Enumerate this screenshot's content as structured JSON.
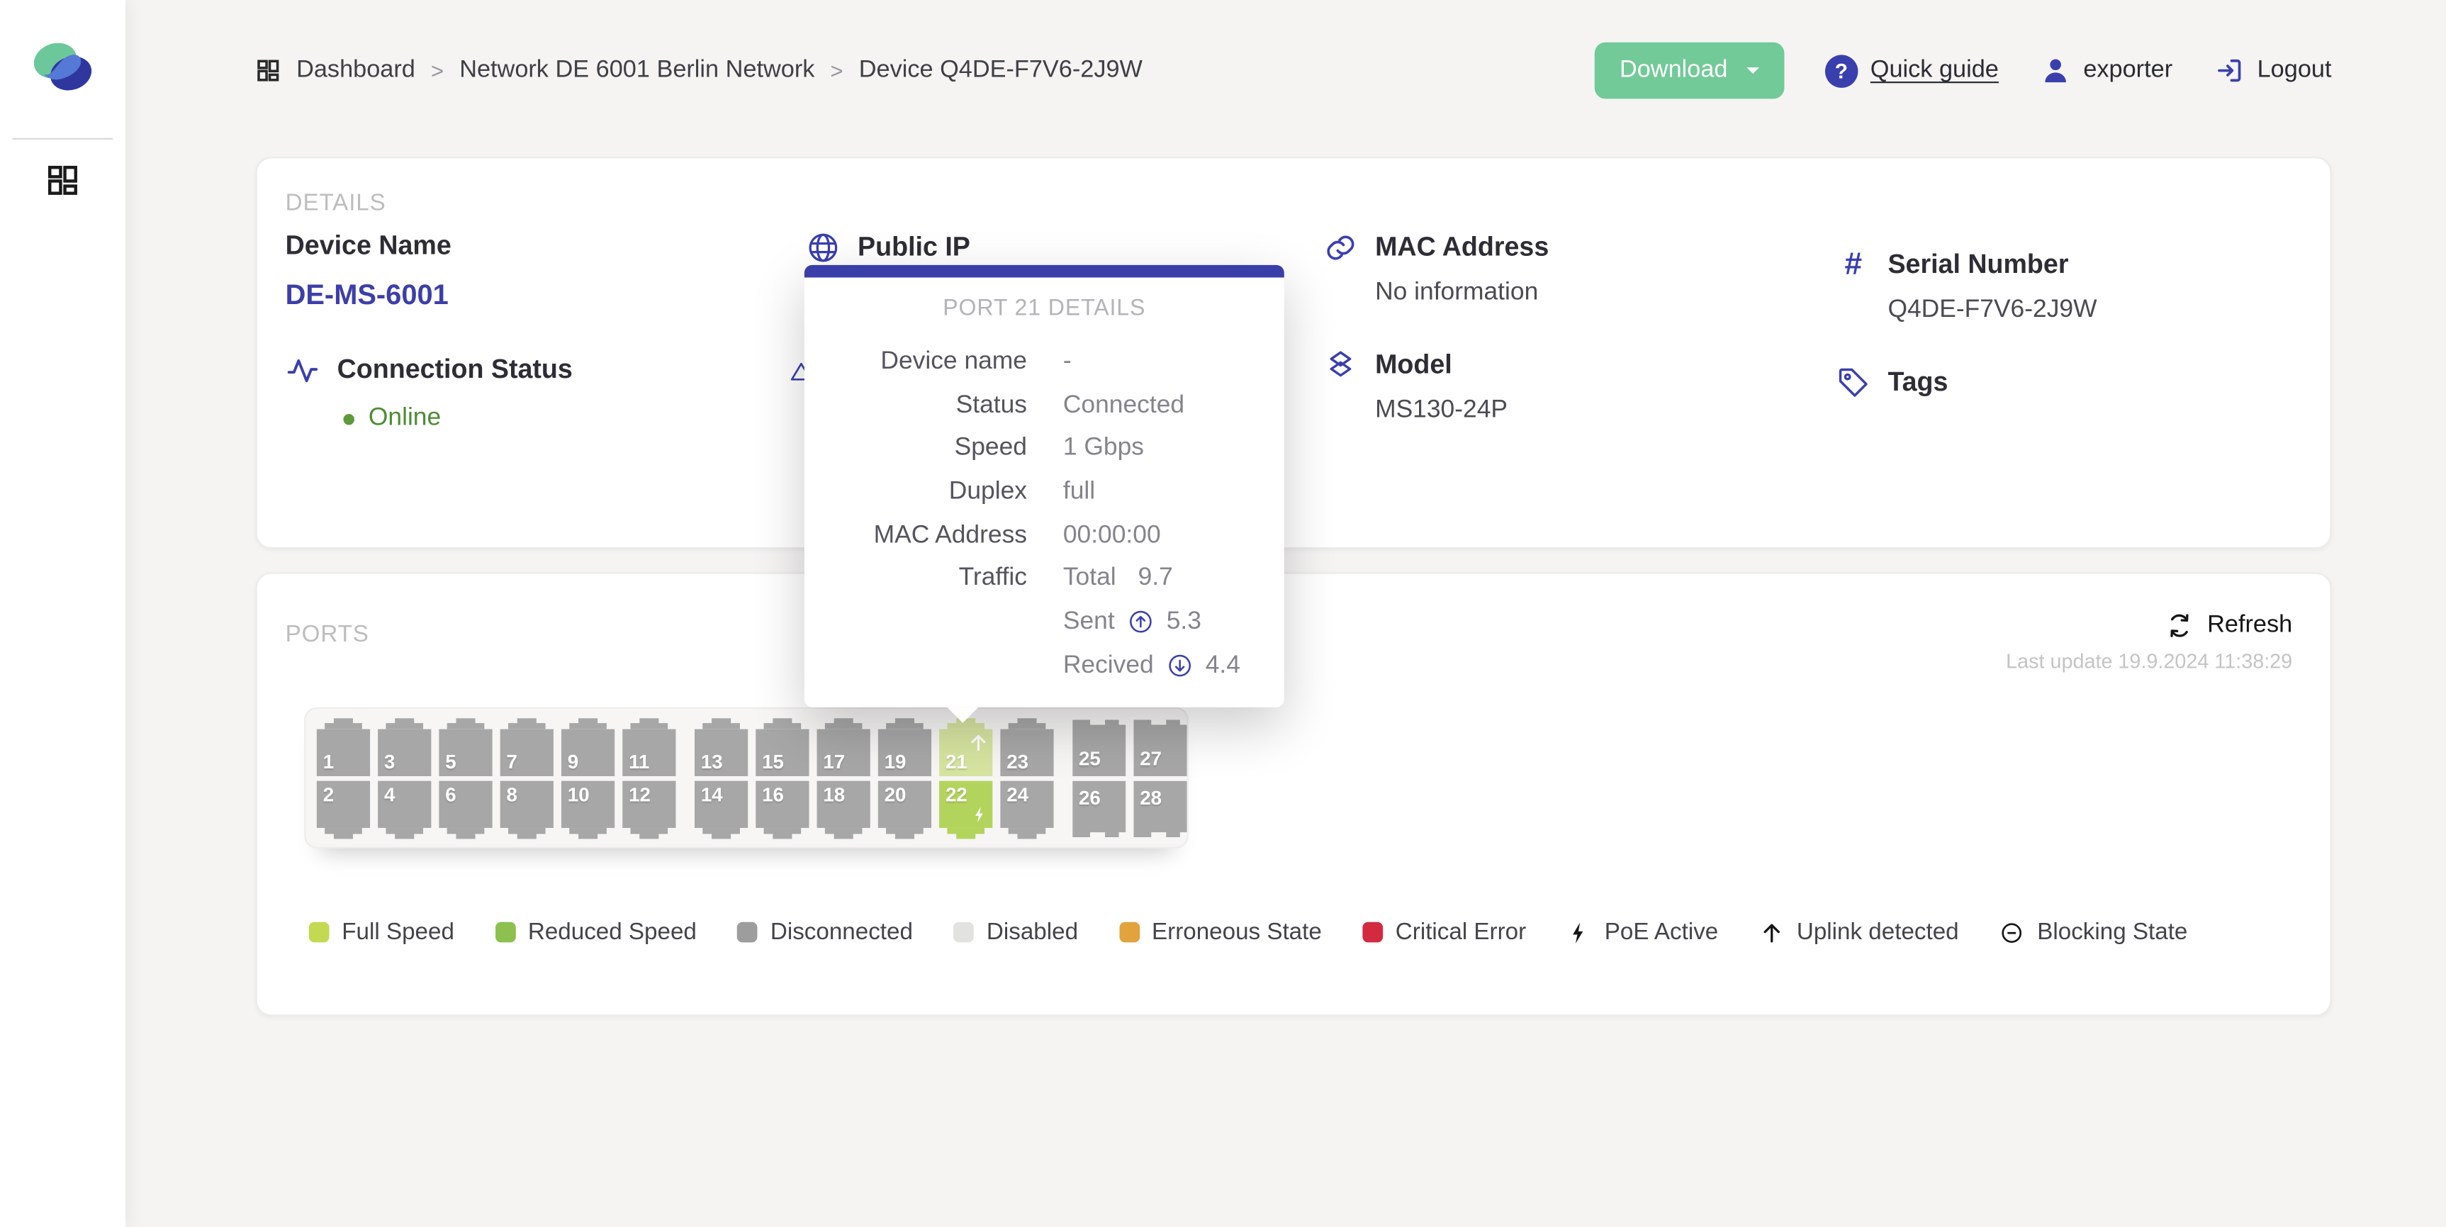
{
  "colors": {
    "accent_indigo": "#3a3fae",
    "button_green": "#71ca97",
    "online_green": "#4f8c36",
    "tooltip_bar": "#3a3ea8"
  },
  "breadcrumb": {
    "items": [
      "Dashboard",
      "Network DE 6001 Berlin Network",
      "Device Q4DE-F7V6-2J9W"
    ],
    "separator": ">"
  },
  "topbar": {
    "download_label": "Download",
    "quick_guide_label": "Quick guide",
    "username": "exporter",
    "logout_label": "Logout"
  },
  "details": {
    "section_title": "DETAILS",
    "device_name_label": "Device Name",
    "device_name": "DE-MS-6001",
    "connection_status_label": "Connection Status",
    "connection_status": "Online",
    "public_ip_label": "Public IP",
    "mac_label": "MAC Address",
    "mac": "No information",
    "model_label": "Model",
    "model": "MS130-24P",
    "serial_label": "Serial Number",
    "serial": "Q4DE-F7V6-2J9W",
    "tags_label": "Tags"
  },
  "tooltip": {
    "title": "PORT 21 DETAILS",
    "rows": [
      {
        "label": "Device name",
        "text": "-"
      },
      {
        "label": "Status",
        "text": "Connected"
      },
      {
        "label": "Speed",
        "text": "1 Gbps"
      },
      {
        "label": "Duplex",
        "text": "full"
      },
      {
        "label": "MAC Address",
        "text": "00:00:00"
      },
      {
        "label": "Traffic",
        "text": "Total",
        "num": "9.7"
      },
      {
        "label": "",
        "text": "Sent",
        "icon": "up-circle",
        "num": "5.3"
      },
      {
        "label": "",
        "text": "Recived",
        "icon": "down-circle",
        "num": "4.4"
      }
    ]
  },
  "ports_card": {
    "section_title": "PORTS",
    "refresh_label": "Refresh",
    "last_update": "Last update 19.9.2024 11:38:29",
    "state_colors": {
      "disconnected": "#a7a7a7",
      "full-speed": "#d6e4a0",
      "reduced-speed": "#b3d45c"
    },
    "ports": [
      {
        "n": 1,
        "type": "rj45",
        "state": "disconnected"
      },
      {
        "n": 2,
        "type": "rj45",
        "state": "disconnected"
      },
      {
        "n": 3,
        "type": "rj45",
        "state": "disconnected"
      },
      {
        "n": 4,
        "type": "rj45",
        "state": "disconnected"
      },
      {
        "n": 5,
        "type": "rj45",
        "state": "disconnected"
      },
      {
        "n": 6,
        "type": "rj45",
        "state": "disconnected"
      },
      {
        "n": 7,
        "type": "rj45",
        "state": "disconnected"
      },
      {
        "n": 8,
        "type": "rj45",
        "state": "disconnected"
      },
      {
        "n": 9,
        "type": "rj45",
        "state": "disconnected"
      },
      {
        "n": 10,
        "type": "rj45",
        "state": "disconnected"
      },
      {
        "n": 11,
        "type": "rj45",
        "state": "disconnected"
      },
      {
        "n": 12,
        "type": "rj45",
        "state": "disconnected"
      },
      {
        "n": 13,
        "type": "rj45",
        "state": "disconnected"
      },
      {
        "n": 14,
        "type": "rj45",
        "state": "disconnected"
      },
      {
        "n": 15,
        "type": "rj45",
        "state": "disconnected"
      },
      {
        "n": 16,
        "type": "rj45",
        "state": "disconnected"
      },
      {
        "n": 17,
        "type": "rj45",
        "state": "disconnected"
      },
      {
        "n": 18,
        "type": "rj45",
        "state": "disconnected"
      },
      {
        "n": 19,
        "type": "rj45",
        "state": "disconnected"
      },
      {
        "n": 20,
        "type": "rj45",
        "state": "disconnected"
      },
      {
        "n": 21,
        "type": "rj45",
        "state": "full-speed",
        "uplink": true
      },
      {
        "n": 22,
        "type": "rj45",
        "state": "reduced-speed",
        "poe": true
      },
      {
        "n": 23,
        "type": "rj45",
        "state": "disconnected"
      },
      {
        "n": 24,
        "type": "rj45",
        "state": "disconnected"
      },
      {
        "n": 25,
        "type": "sfp",
        "state": "disconnected"
      },
      {
        "n": 26,
        "type": "sfp",
        "state": "disconnected"
      },
      {
        "n": 27,
        "type": "sfp",
        "state": "disconnected"
      },
      {
        "n": 28,
        "type": "sfp",
        "state": "disconnected"
      }
    ]
  },
  "legend": {
    "items": [
      {
        "label": "Full Speed",
        "chip": "#c4d952"
      },
      {
        "label": "Reduced Speed",
        "chip": "#8dc04f"
      },
      {
        "label": "Disconnected",
        "chip": "#9d9d9d"
      },
      {
        "label": "Disabled",
        "chip": "#e2e2e1"
      },
      {
        "label": "Erroneous State",
        "chip": "#e2a33c"
      },
      {
        "label": "Critical Error",
        "chip": "#d32a3f"
      },
      {
        "label": "PoE Active",
        "icon": "bolt"
      },
      {
        "label": "Uplink detected",
        "icon": "arrow-up"
      },
      {
        "label": "Blocking State",
        "icon": "circle-minus"
      }
    ]
  }
}
